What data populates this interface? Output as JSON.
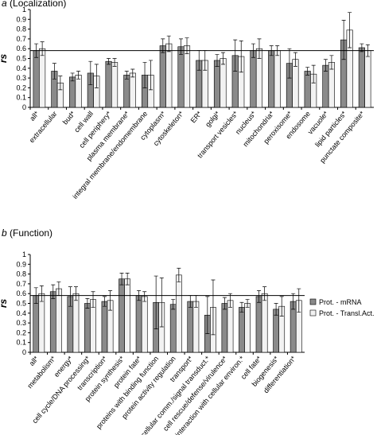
{
  "chart_data": [
    {
      "type": "bar",
      "label": "a",
      "title": "(Localization)",
      "y_label": "rs",
      "categories": [
        "all*",
        "extracellular",
        "bud*",
        "cell wall",
        "cell periphery*",
        "plasma membrane*",
        "integral membrane/endomembrane",
        "cytoplasm*",
        "cytoskeleton*",
        "ER*",
        "golgi*",
        "transport vesicles*",
        "nucleus*",
        "mitochondria*",
        "peroxisome*",
        "endosome",
        "vacuole*",
        "lipid particles*",
        "punctate composite*"
      ],
      "series": [
        {
          "color": "#8a8a8a",
          "values": [
            0.58,
            0.37,
            0.31,
            0.35,
            0.47,
            0.33,
            0.33,
            0.63,
            0.62,
            0.48,
            0.48,
            0.53,
            0.58,
            0.58,
            0.45,
            0.37,
            0.43,
            0.69,
            0.61
          ],
          "errors": [
            0.07,
            0.08,
            0.04,
            0.12,
            0.03,
            0.04,
            0.13,
            0.07,
            0.08,
            0.1,
            0.06,
            0.16,
            0.07,
            0.05,
            0.15,
            0.04,
            0.06,
            0.2,
            0.04
          ]
        },
        {
          "color": "#f2f2f2",
          "values": [
            0.6,
            0.25,
            0.33,
            0.32,
            0.46,
            0.35,
            0.33,
            0.65,
            0.63,
            0.48,
            0.5,
            0.52,
            0.6,
            0.58,
            0.49,
            0.34,
            0.46,
            0.79,
            0.58
          ],
          "errors": [
            0.07,
            0.07,
            0.04,
            0.12,
            0.04,
            0.04,
            0.15,
            0.08,
            0.08,
            0.1,
            0.06,
            0.16,
            0.1,
            0.05,
            0.07,
            0.09,
            0.07,
            0.18,
            0.06
          ]
        }
      ],
      "ylim": [
        0,
        1
      ],
      "yticks": [
        0,
        0.1,
        0.2,
        0.3,
        0.4,
        0.5,
        0.6,
        0.7,
        0.8,
        0.9,
        1
      ],
      "ref_line": 0.58
    },
    {
      "type": "bar",
      "label": "b",
      "title": "(Function)",
      "y_label": "rs",
      "categories": [
        "all*",
        "metabolism*",
        "energy*",
        "cell cycle/DNA processing*",
        "transcription*",
        "protein synthesis*",
        "protein fate*",
        "proteins with binding function",
        "protein activity regulation",
        "transport*",
        "cellular comm./signal transduct.*",
        "cell rescue/defense/virulence*",
        "interaction with cellular environ.*",
        "cell fate*",
        "biogenesis*",
        "differentiation*"
      ],
      "series": [
        {
          "name": "Prot. - mRNA",
          "color": "#8a8a8a",
          "values": [
            0.58,
            0.62,
            0.57,
            0.5,
            0.52,
            0.75,
            0.58,
            0.51,
            0.49,
            0.52,
            0.38,
            0.5,
            0.46,
            0.57,
            0.44,
            0.52
          ],
          "errors": [
            0.08,
            0.07,
            0.1,
            0.05,
            0.05,
            0.06,
            0.05,
            0.27,
            0.05,
            0.06,
            0.19,
            0.06,
            0.05,
            0.06,
            0.06,
            0.08
          ]
        },
        {
          "name": "Prot. - Transl.Act.",
          "color": "#f2f2f2",
          "values": [
            0.6,
            0.65,
            0.6,
            0.54,
            0.53,
            0.75,
            0.57,
            0.51,
            0.79,
            0.52,
            0.46,
            0.53,
            0.5,
            0.6,
            0.47,
            0.53
          ],
          "errors": [
            0.08,
            0.07,
            0.07,
            0.08,
            0.1,
            0.06,
            0.05,
            0.25,
            0.07,
            0.06,
            0.28,
            0.07,
            0.04,
            0.07,
            0.1,
            0.12
          ]
        }
      ],
      "ylim": [
        0,
        1
      ],
      "yticks": [
        0,
        0.1,
        0.2,
        0.3,
        0.4,
        0.5,
        0.6,
        0.7,
        0.8,
        0.9,
        1
      ],
      "ref_line": 0.58
    }
  ]
}
